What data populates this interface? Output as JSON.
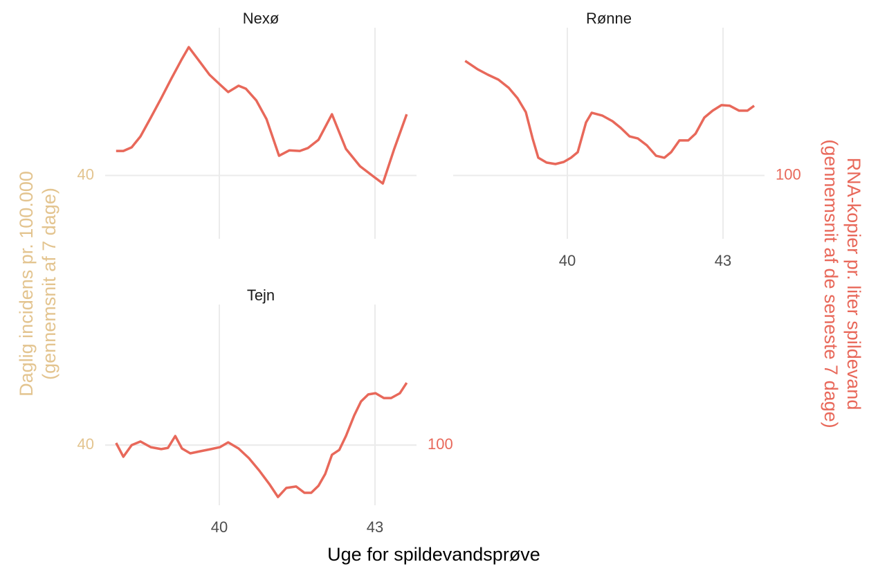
{
  "x_label": "Uge for spildevandsprøve",
  "y_label": [
    "Daglig incidens pr. 100.000",
    "(gennemsnit af 7 dage)"
  ],
  "y_label_color": "#e3c48f",
  "y2_label": [
    "RNA-kopier pr. liter spildevand",
    "(gennemsnit af de seneste 7 dage)"
  ],
  "y2_label_color": "#e8685a",
  "chart_data": [
    {
      "type": "line",
      "title": "Nexø",
      "grid": true,
      "tick_labels": [
        "y"
      ],
      "xlim": [
        37.8,
        43.8
      ],
      "xticks": [
        40,
        43
      ],
      "ylim": [
        28,
        68
      ],
      "yticks": [
        40
      ],
      "y2lim": [
        70,
        170
      ],
      "x": [
        38.01,
        38.15,
        38.31,
        38.48,
        38.68,
        38.88,
        39.08,
        39.28,
        39.41,
        39.61,
        39.81,
        40.01,
        40.17,
        40.37,
        40.51,
        40.71,
        40.91,
        41.15,
        41.35,
        41.55,
        41.71,
        41.91,
        42.17,
        42.44,
        42.71,
        42.97,
        43.15,
        43.37,
        43.61
      ],
      "series": [
        {
          "color": "#e8685a",
          "axis": "y2",
          "values": [
            111.6,
            111.6,
            113.3,
            118.5,
            127.4,
            136.6,
            146.1,
            155.2,
            160.8,
            154.3,
            147.7,
            143.1,
            139.5,
            142.5,
            141.1,
            135.6,
            126.7,
            109.3,
            111.9,
            111.6,
            113.0,
            116.9,
            129.0,
            112.6,
            104.4,
            99.5,
            96.2,
            112.6,
            129.0
          ]
        }
      ]
    },
    {
      "type": "line",
      "title": "Rønne",
      "grid": true,
      "tick_labels": [
        "x",
        "y2"
      ],
      "xlim": [
        37.8,
        43.8
      ],
      "xticks": [
        40,
        43
      ],
      "y2lim": [
        70,
        170
      ],
      "y2ticks": [
        100
      ],
      "x": [
        38.03,
        38.27,
        38.47,
        38.67,
        38.87,
        39.04,
        39.2,
        39.33,
        39.44,
        39.6,
        39.77,
        39.93,
        40.07,
        40.2,
        40.36,
        40.47,
        40.67,
        40.87,
        41.03,
        41.2,
        41.36,
        41.53,
        41.71,
        41.87,
        42.0,
        42.16,
        42.33,
        42.47,
        42.64,
        42.8,
        42.97,
        43.13,
        43.31,
        43.47,
        43.6
      ],
      "series": [
        {
          "color": "#e8685a",
          "axis": "y2",
          "values": [
            154.3,
            150.3,
            147.7,
            145.4,
            141.5,
            136.6,
            130.0,
            117.5,
            108.4,
            106.1,
            105.4,
            106.4,
            108.4,
            111.0,
            125.1,
            129.7,
            128.4,
            125.7,
            122.5,
            118.5,
            117.5,
            114.3,
            109.3,
            108.4,
            111.0,
            116.6,
            116.6,
            119.8,
            127.4,
            130.7,
            133.3,
            133.0,
            130.7,
            130.7,
            133.0
          ]
        }
      ]
    },
    {
      "type": "line",
      "title": "Tejn",
      "grid": true,
      "tick_labels": [
        "x",
        "y",
        "y2"
      ],
      "xlim": [
        37.8,
        43.8
      ],
      "xticks": [
        40,
        43
      ],
      "ylim": [
        28.6,
        66.6
      ],
      "yticks": [
        40
      ],
      "y2lim": [
        71.5,
        166.6
      ],
      "y2ticks": [
        100
      ],
      "x": [
        38.01,
        38.15,
        38.31,
        38.48,
        38.68,
        38.88,
        39.01,
        39.15,
        39.28,
        39.44,
        39.64,
        39.84,
        40.01,
        40.17,
        40.37,
        40.57,
        40.77,
        40.97,
        41.13,
        41.29,
        41.48,
        41.64,
        41.77,
        41.91,
        42.04,
        42.17,
        42.31,
        42.44,
        42.6,
        42.73,
        42.87,
        43.01,
        43.17,
        43.31,
        43.48,
        43.61
      ],
      "series": [
        {
          "color": "#e8685a",
          "axis": "y2",
          "values": [
            101.0,
            94.5,
            100.0,
            101.7,
            99.0,
            98.1,
            98.7,
            104.3,
            98.4,
            96.1,
            97.1,
            98.1,
            99.0,
            101.3,
            98.4,
            93.8,
            87.9,
            81.3,
            75.4,
            79.7,
            80.4,
            77.4,
            77.4,
            80.7,
            86.3,
            95.4,
            97.7,
            104.3,
            114.1,
            120.7,
            124.0,
            124.6,
            122.3,
            122.3,
            124.6,
            129.5
          ]
        }
      ]
    }
  ]
}
